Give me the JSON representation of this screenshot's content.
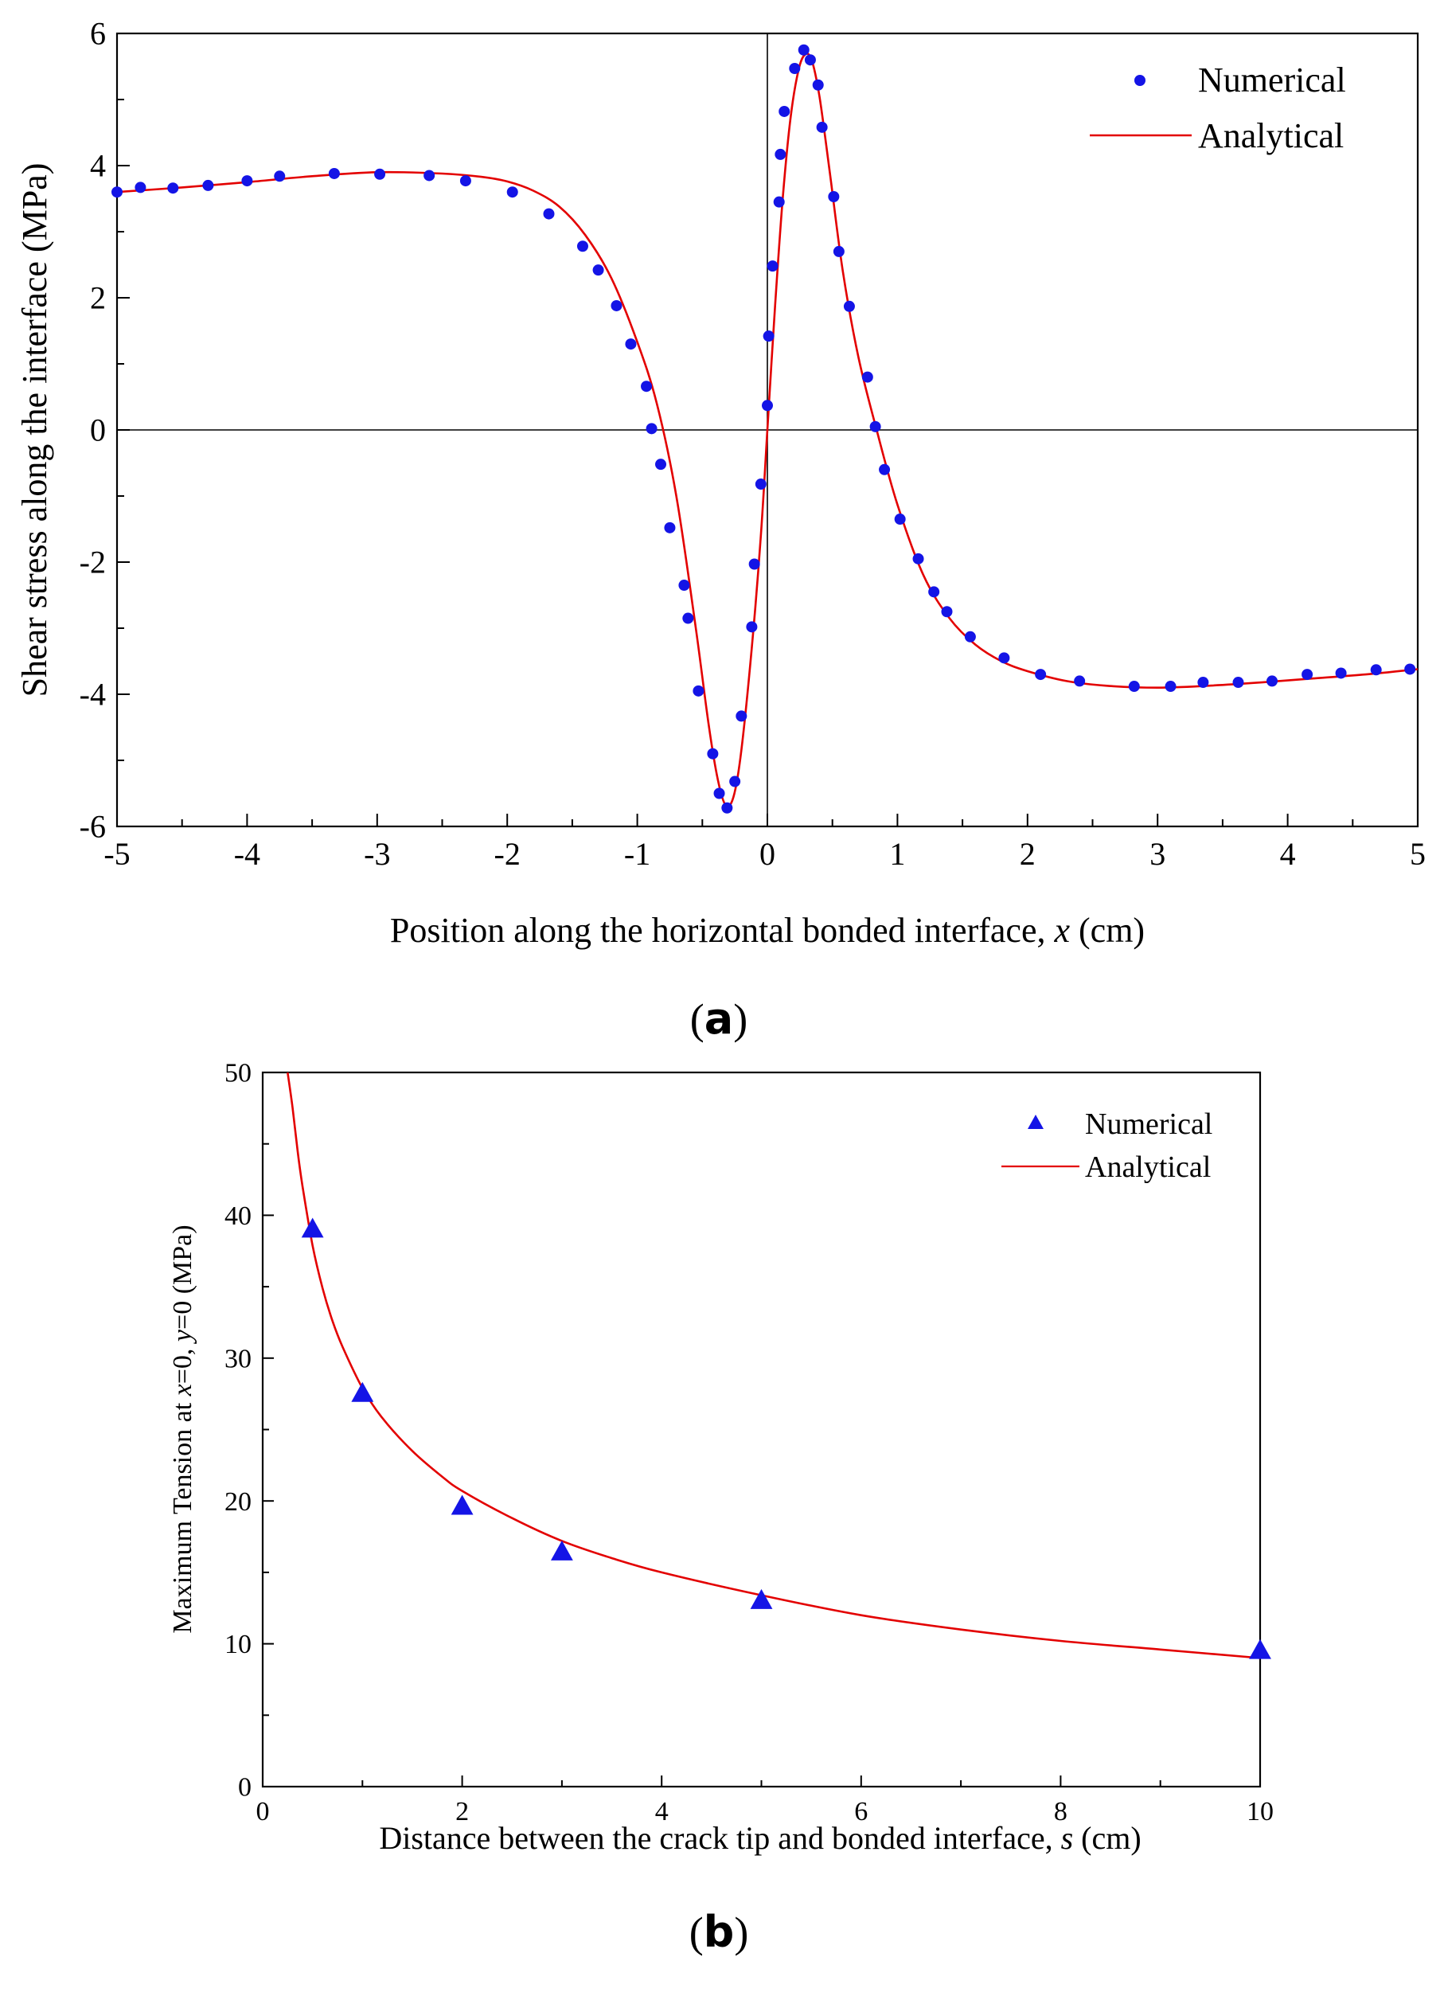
{
  "chart_data": [
    {
      "panel": "(a)",
      "type": "scatter",
      "xlabel": "Position along the horizontal bonded interface, x (cm)",
      "ylabel": "Shear stress along the interface (MPa)",
      "xlim": [
        -5,
        5
      ],
      "ylim": [
        -6,
        6
      ],
      "xticks": [
        -5,
        -4,
        -3,
        -2,
        -1,
        0,
        1,
        2,
        3,
        4,
        5
      ],
      "yticks": [
        -6,
        -4,
        -2,
        0,
        2,
        4,
        6
      ],
      "legend": [
        "Numerical",
        "Analytical"
      ],
      "series": [
        {
          "name": "Numerical",
          "marker": "circle",
          "x": [
            -5.0,
            -4.82,
            -4.57,
            -4.3,
            -4.0,
            -3.75,
            -3.33,
            -2.98,
            -2.6,
            -2.32,
            -1.96,
            -1.68,
            -1.42,
            -1.3,
            -1.16,
            -1.05,
            -0.93,
            -0.89,
            -0.82,
            -0.75,
            -0.64,
            -0.61,
            -0.53,
            -0.42,
            -0.37,
            -0.31,
            -0.25,
            -0.2,
            -0.12,
            -0.1,
            -0.05,
            0.0,
            0.01,
            0.04,
            0.09,
            0.1,
            0.13,
            0.21,
            0.28,
            0.33,
            0.39,
            0.42,
            0.51,
            0.55,
            0.63,
            0.77,
            0.83,
            0.9,
            1.02,
            1.16,
            1.28,
            1.38,
            1.56,
            1.82,
            2.1,
            2.4,
            2.82,
            3.1,
            3.35,
            3.62,
            3.88,
            4.15,
            4.41,
            4.68,
            4.94
          ],
          "y": [
            3.6,
            3.67,
            3.66,
            3.7,
            3.77,
            3.84,
            3.88,
            3.87,
            3.85,
            3.77,
            3.6,
            3.27,
            2.78,
            2.42,
            1.88,
            1.3,
            0.66,
            0.02,
            -0.52,
            -1.48,
            -2.35,
            -2.85,
            -3.95,
            -4.9,
            -5.5,
            -5.72,
            -5.32,
            -4.33,
            -2.98,
            -2.03,
            -0.82,
            0.37,
            1.42,
            2.48,
            3.45,
            4.17,
            4.82,
            5.47,
            5.75,
            5.6,
            5.22,
            4.58,
            3.53,
            2.7,
            1.87,
            0.8,
            0.05,
            -0.6,
            -1.35,
            -1.95,
            -2.45,
            -2.75,
            -3.13,
            -3.45,
            -3.7,
            -3.8,
            -3.88,
            -3.88,
            -3.82,
            -3.82,
            -3.8,
            -3.7,
            -3.68,
            -3.63,
            -3.62
          ]
        },
        {
          "name": "Analytical",
          "style": "line",
          "x": [
            -5.0,
            -4.5,
            -4.0,
            -3.5,
            -3.0,
            -2.5,
            -2.2,
            -2.0,
            -1.8,
            -1.6,
            -1.4,
            -1.2,
            -1.0,
            -0.85,
            -0.7,
            -0.55,
            -0.45,
            -0.38,
            -0.32,
            -0.26,
            -0.2,
            -0.12,
            -0.05,
            0.0,
            0.06,
            0.12,
            0.18,
            0.24,
            0.29,
            0.34,
            0.4,
            0.48,
            0.58,
            0.7,
            0.84,
            1.0,
            1.2,
            1.4,
            1.6,
            1.8,
            2.0,
            2.3,
            2.6,
            3.0,
            3.4,
            3.8,
            4.2,
            4.6,
            5.0
          ],
          "y": [
            3.6,
            3.67,
            3.75,
            3.84,
            3.9,
            3.88,
            3.83,
            3.76,
            3.62,
            3.38,
            2.95,
            2.3,
            1.33,
            0.4,
            -1.0,
            -3.0,
            -4.48,
            -5.3,
            -5.68,
            -5.55,
            -4.85,
            -3.3,
            -1.6,
            0.0,
            1.9,
            3.55,
            4.75,
            5.45,
            5.68,
            5.6,
            5.05,
            3.9,
            2.4,
            1.1,
            0.0,
            -1.13,
            -2.2,
            -2.85,
            -3.25,
            -3.5,
            -3.65,
            -3.8,
            -3.87,
            -3.9,
            -3.87,
            -3.82,
            -3.76,
            -3.7,
            -3.62
          ]
        }
      ]
    },
    {
      "panel": "(b)",
      "type": "scatter",
      "xlabel": "Distance between the crack tip and bonded interface, s (cm)",
      "ylabel": "Maximum Tension at x=0, y=0 (MPa)",
      "xlim": [
        0,
        10
      ],
      "ylim": [
        0,
        50
      ],
      "xticks": [
        0,
        2,
        4,
        6,
        8,
        10
      ],
      "yticks": [
        0,
        10,
        20,
        30,
        40,
        50
      ],
      "legend": [
        "Numerical",
        "Analytical"
      ],
      "series": [
        {
          "name": "Numerical",
          "marker": "triangle",
          "x": [
            0.5,
            1.0,
            2.0,
            3.0,
            5.0,
            10.0
          ],
          "y": [
            39,
            27.5,
            19.6,
            16.4,
            13.0,
            9.5
          ]
        },
        {
          "name": "Analytical",
          "style": "line",
          "x": [
            0.25,
            0.3,
            0.35,
            0.4,
            0.5,
            0.6,
            0.7,
            0.8,
            1.0,
            1.2,
            1.5,
            1.8,
            2.0,
            2.5,
            3.0,
            3.5,
            4.0,
            5.0,
            6.0,
            7.0,
            8.0,
            9.0,
            10.0
          ],
          "y": [
            50.0,
            47.5,
            44.5,
            42.0,
            37.9,
            34.9,
            32.6,
            30.8,
            27.9,
            25.8,
            23.5,
            21.7,
            20.7,
            18.8,
            17.2,
            16.0,
            15.0,
            13.4,
            12.0,
            11.0,
            10.2,
            9.6,
            9.0
          ]
        }
      ]
    }
  ],
  "labels": {
    "a_tag_letter": "a",
    "b_tag_letter": "b",
    "a_xlabel_pre": "Position along the horizontal bonded interface, ",
    "a_xlabel_var": "x",
    "a_xlabel_post": " (cm)",
    "a_ylabel": "Shear stress along the interface (MPa)",
    "b_xlabel_pre": "Distance between the crack tip and bonded interface, ",
    "b_xlabel_var": "s",
    "b_xlabel_post": " (cm)",
    "b_ylabel_pre": "Maximum Tension at ",
    "b_ylabel_x": "x",
    "b_ylabel_mid": "=0, ",
    "b_ylabel_y": "y",
    "b_ylabel_post": "=0 (MPa)",
    "legend_numerical": "Numerical",
    "legend_analytical": "Analytical"
  },
  "colors": {
    "numerical": "#1414e6",
    "analytical": "#e30000"
  }
}
